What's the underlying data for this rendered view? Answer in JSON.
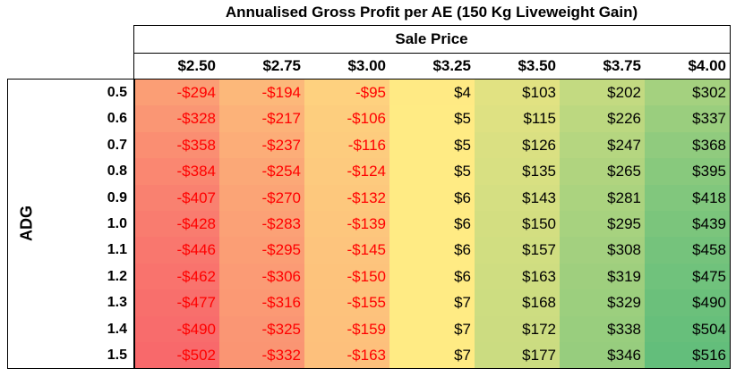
{
  "chart_data": {
    "type": "heatmap",
    "title": "Annualised Gross Profit per AE (150 Kg Liveweight Gain)",
    "column_header": "Sale Price",
    "row_header": "ADG",
    "columns": [
      "$2.50",
      "$2.75",
      "$3.00",
      "$3.25",
      "$3.50",
      "$3.75",
      "$4.00"
    ],
    "rows": [
      "0.5",
      "0.6",
      "0.7",
      "0.8",
      "0.9",
      "1.0",
      "1.1",
      "1.2",
      "1.3",
      "1.4",
      "1.5"
    ],
    "values": [
      [
        -294,
        -194,
        -95,
        4,
        103,
        202,
        302
      ],
      [
        -328,
        -217,
        -106,
        5,
        115,
        226,
        337
      ],
      [
        -358,
        -237,
        -116,
        5,
        126,
        247,
        368
      ],
      [
        -384,
        -254,
        -124,
        5,
        135,
        265,
        395
      ],
      [
        -407,
        -270,
        -132,
        6,
        143,
        281,
        418
      ],
      [
        -428,
        -283,
        -139,
        6,
        150,
        295,
        439
      ],
      [
        -446,
        -295,
        -145,
        6,
        157,
        308,
        458
      ],
      [
        -462,
        -306,
        -150,
        6,
        163,
        319,
        475
      ],
      [
        -477,
        -316,
        -155,
        7,
        168,
        329,
        490
      ],
      [
        -490,
        -325,
        -159,
        7,
        172,
        338,
        504
      ],
      [
        -502,
        -332,
        -163,
        7,
        177,
        346,
        516
      ]
    ],
    "color_scale": {
      "min": "#f8696b",
      "mid": "#ffeb84",
      "max": "#63be7b"
    },
    "negative_text_color": "#ff0000"
  }
}
